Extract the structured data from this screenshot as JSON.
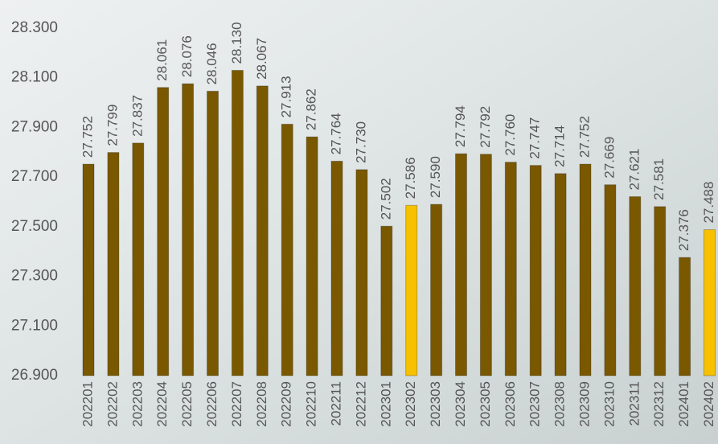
{
  "chart_data": {
    "type": "bar",
    "categories": [
      "202201",
      "202202",
      "202203",
      "202204",
      "202205",
      "202206",
      "202207",
      "202208",
      "202209",
      "202210",
      "202211",
      "202212",
      "202301",
      "202302",
      "202303",
      "202304",
      "202305",
      "202306",
      "202307",
      "202308",
      "202309",
      "202310",
      "202311",
      "202312",
      "202401",
      "202402"
    ],
    "values": [
      27.752,
      27.799,
      27.837,
      28.061,
      28.076,
      28.046,
      28.13,
      28.067,
      27.913,
      27.862,
      27.764,
      27.73,
      27.502,
      27.586,
      27.59,
      27.794,
      27.792,
      27.76,
      27.747,
      27.714,
      27.752,
      27.669,
      27.621,
      27.581,
      27.376,
      27.488
    ],
    "value_labels": [
      "27.752",
      "27.799",
      "27.837",
      "28.061",
      "28.076",
      "28.046",
      "28.130",
      "28.067",
      "27.913",
      "27.862",
      "27.764",
      "27.730",
      "27.502",
      "27.586",
      "27.590",
      "27.794",
      "27.792",
      "27.760",
      "27.747",
      "27.714",
      "27.752",
      "27.669",
      "27.621",
      "27.581",
      "27.376",
      "27.488"
    ],
    "colors": [
      "#7a5800",
      "#7a5800",
      "#7a5800",
      "#7a5800",
      "#7a5800",
      "#7a5800",
      "#7a5800",
      "#7a5800",
      "#7a5800",
      "#7a5800",
      "#7a5800",
      "#7a5800",
      "#7a5800",
      "#f7c100",
      "#7a5800",
      "#7a5800",
      "#7a5800",
      "#7a5800",
      "#7a5800",
      "#7a5800",
      "#7a5800",
      "#7a5800",
      "#7a5800",
      "#7a5800",
      "#7a5800",
      "#f7c100"
    ],
    "ylim": [
      26.9,
      28.3
    ],
    "yticks": [
      {
        "value": 26.9,
        "label": "26.900"
      },
      {
        "value": 27.1,
        "label": "27.100"
      },
      {
        "value": 27.3,
        "label": "27.300"
      },
      {
        "value": 27.5,
        "label": "27.500"
      },
      {
        "value": 27.7,
        "label": "27.700"
      },
      {
        "value": 27.9,
        "label": "27.900"
      },
      {
        "value": 28.1,
        "label": "28.100"
      },
      {
        "value": 28.3,
        "label": "28.300"
      }
    ],
    "grid": false
  }
}
